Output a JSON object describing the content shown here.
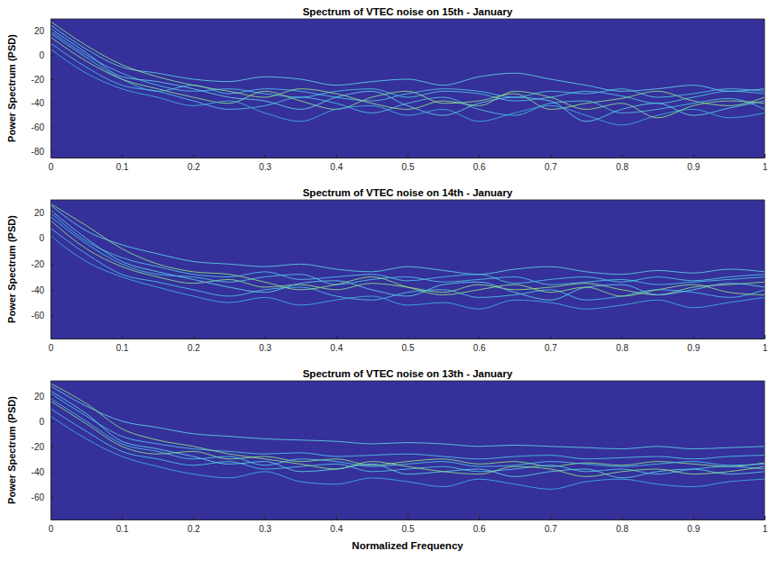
{
  "chart_data": [
    {
      "type": "line",
      "title": "Spectrum of VTEC noise on 15th - January",
      "y_label": "Power Spectrum (PSD)",
      "x": [
        0,
        0.05,
        0.1,
        0.15,
        0.2,
        0.25,
        0.3,
        0.35,
        0.4,
        0.45,
        0.5,
        0.55,
        0.6,
        0.65,
        0.7,
        0.75,
        0.8,
        0.85,
        0.9,
        0.95,
        1
      ],
      "xlim": [
        0,
        1
      ],
      "xticks": [
        0,
        0.1,
        0.2,
        0.3,
        0.4,
        0.5,
        0.6,
        0.7,
        0.8,
        0.9,
        1
      ],
      "ylim": [
        -85,
        30
      ],
      "yticks": [
        -80,
        -60,
        -40,
        -20,
        0,
        20
      ],
      "grid": false,
      "series": [
        {
          "color": "#5fd0e8",
          "values": [
            25,
            5,
            -10,
            -15,
            -20,
            -22,
            -18,
            -20,
            -25,
            -22,
            -20,
            -25,
            -18,
            -15,
            -20,
            -25,
            -30,
            -28,
            -25,
            -30,
            -28
          ]
        },
        {
          "color": "#4fc4e6",
          "values": [
            20,
            0,
            -15,
            -25,
            -30,
            -28,
            -32,
            -35,
            -30,
            -28,
            -35,
            -30,
            -32,
            -38,
            -35,
            -30,
            -34,
            -40,
            -35,
            -30,
            -32
          ]
        },
        {
          "color": "#8fe08a",
          "values": [
            15,
            -5,
            -20,
            -28,
            -35,
            -40,
            -30,
            -38,
            -45,
            -35,
            -30,
            -40,
            -38,
            -32,
            -45,
            -40,
            -36,
            -30,
            -38,
            -42,
            -35
          ]
        },
        {
          "color": "#4fc4e6",
          "values": [
            10,
            -10,
            -25,
            -30,
            -38,
            -45,
            -42,
            -35,
            -40,
            -48,
            -40,
            -35,
            -45,
            -50,
            -40,
            -38,
            -48,
            -45,
            -40,
            -36,
            -45
          ]
        },
        {
          "color": "#5fd0e8",
          "values": [
            22,
            2,
            -18,
            -22,
            -28,
            -35,
            -38,
            -45,
            -35,
            -30,
            -42,
            -50,
            -40,
            -35,
            -38,
            -55,
            -45,
            -40,
            -50,
            -44,
            -38
          ]
        },
        {
          "color": "#3fb0e0",
          "values": [
            5,
            -15,
            -28,
            -35,
            -42,
            -38,
            -48,
            -55,
            -45,
            -42,
            -50,
            -45,
            -55,
            -48,
            -42,
            -50,
            -58,
            -50,
            -45,
            -52,
            -48
          ]
        },
        {
          "color": "#4fc4e6",
          "values": [
            18,
            -2,
            -20,
            -30,
            -25,
            -32,
            -28,
            -30,
            -35,
            -38,
            -32,
            -28,
            -30,
            -35,
            -30,
            -32,
            -28,
            -35,
            -32,
            -28,
            -30
          ]
        },
        {
          "color": "#8fe08a",
          "values": [
            28,
            8,
            -8,
            -18,
            -25,
            -30,
            -35,
            -28,
            -32,
            -40,
            -45,
            -38,
            -42,
            -30,
            -35,
            -45,
            -40,
            -52,
            -42,
            -38,
            -40
          ]
        }
      ]
    },
    {
      "type": "line",
      "title": "Spectrum of VTEC noise on 14th - January",
      "y_label": "Power Spectrum (PSD)",
      "x": [
        0,
        0.05,
        0.1,
        0.15,
        0.2,
        0.25,
        0.3,
        0.35,
        0.4,
        0.45,
        0.5,
        0.55,
        0.6,
        0.65,
        0.7,
        0.75,
        0.8,
        0.85,
        0.9,
        0.95,
        1
      ],
      "xlim": [
        0,
        1
      ],
      "xticks": [
        0,
        0.1,
        0.2,
        0.3,
        0.4,
        0.5,
        0.6,
        0.7,
        0.8,
        0.9,
        1
      ],
      "ylim": [
        -78,
        30
      ],
      "yticks": [
        -60,
        -40,
        -20,
        0,
        20
      ],
      "grid": false,
      "series": [
        {
          "color": "#5fd0e8",
          "values": [
            26,
            6,
            -5,
            -12,
            -18,
            -20,
            -22,
            -20,
            -24,
            -26,
            -22,
            -25,
            -28,
            -24,
            -22,
            -26,
            -28,
            -25,
            -27,
            -24,
            -26
          ]
        },
        {
          "color": "#4fc4e6",
          "values": [
            20,
            -2,
            -15,
            -22,
            -28,
            -30,
            -26,
            -32,
            -30,
            -28,
            -33,
            -30,
            -28,
            -35,
            -32,
            -30,
            -34,
            -30,
            -33,
            -30,
            -28
          ]
        },
        {
          "color": "#8fe08a",
          "values": [
            14,
            -8,
            -22,
            -30,
            -35,
            -32,
            -38,
            -36,
            -40,
            -35,
            -38,
            -42,
            -36,
            -40,
            -38,
            -35,
            -40,
            -44,
            -38,
            -36,
            -34
          ]
        },
        {
          "color": "#4fc4e6",
          "values": [
            8,
            -12,
            -28,
            -34,
            -40,
            -45,
            -40,
            -38,
            -45,
            -48,
            -42,
            -40,
            -46,
            -44,
            -40,
            -48,
            -45,
            -40,
            -42,
            -46,
            -40
          ]
        },
        {
          "color": "#5fd0e8",
          "values": [
            22,
            0,
            -18,
            -26,
            -32,
            -38,
            -42,
            -35,
            -33,
            -40,
            -45,
            -36,
            -34,
            -42,
            -48,
            -38,
            -36,
            -44,
            -40,
            -35,
            -38
          ]
        },
        {
          "color": "#3fb0e0",
          "values": [
            2,
            -18,
            -30,
            -38,
            -45,
            -50,
            -46,
            -52,
            -48,
            -45,
            -52,
            -50,
            -55,
            -48,
            -50,
            -55,
            -52,
            -48,
            -54,
            -50,
            -46
          ]
        },
        {
          "color": "#4fc4e6",
          "values": [
            17,
            -4,
            -20,
            -28,
            -30,
            -34,
            -30,
            -28,
            -36,
            -32,
            -30,
            -34,
            -32,
            -30,
            -36,
            -34,
            -32,
            -36,
            -34,
            -32,
            -30
          ]
        },
        {
          "color": "#8fe08a",
          "values": [
            27,
            10,
            -8,
            -20,
            -26,
            -28,
            -34,
            -40,
            -36,
            -30,
            -38,
            -44,
            -40,
            -36,
            -42,
            -38,
            -45,
            -40,
            -36,
            -42,
            -44
          ]
        }
      ]
    },
    {
      "type": "line",
      "title": "Spectrum of VTEC noise on 13th - January",
      "y_label": "Power Spectrum (PSD)",
      "x_label": "Normalized Frequency",
      "x": [
        0,
        0.05,
        0.1,
        0.15,
        0.2,
        0.25,
        0.3,
        0.35,
        0.4,
        0.45,
        0.5,
        0.55,
        0.6,
        0.65,
        0.7,
        0.75,
        0.8,
        0.85,
        0.9,
        0.95,
        1
      ],
      "xlim": [
        0,
        1
      ],
      "xticks": [
        0,
        0.1,
        0.2,
        0.3,
        0.4,
        0.5,
        0.6,
        0.7,
        0.8,
        0.9,
        1
      ],
      "ylim": [
        -78,
        32
      ],
      "yticks": [
        -60,
        -40,
        -20,
        0,
        20
      ],
      "grid": false,
      "series": [
        {
          "color": "#5fd0e8",
          "values": [
            28,
            12,
            0,
            -5,
            -10,
            -12,
            -14,
            -15,
            -16,
            -18,
            -17,
            -18,
            -20,
            -19,
            -20,
            -21,
            -22,
            -20,
            -22,
            -21,
            -20
          ]
        },
        {
          "color": "#4fc4e6",
          "values": [
            22,
            4,
            -12,
            -18,
            -22,
            -24,
            -26,
            -25,
            -28,
            -27,
            -26,
            -28,
            -30,
            -28,
            -27,
            -30,
            -29,
            -28,
            -30,
            -28,
            -27
          ]
        },
        {
          "color": "#8fe08a",
          "values": [
            16,
            -2,
            -20,
            -26,
            -24,
            -30,
            -28,
            -32,
            -30,
            -35,
            -32,
            -30,
            -34,
            -32,
            -36,
            -33,
            -35,
            -32,
            -34,
            -36,
            -33
          ]
        },
        {
          "color": "#4fc4e6",
          "values": [
            10,
            -8,
            -24,
            -30,
            -35,
            -32,
            -38,
            -36,
            -34,
            -40,
            -38,
            -36,
            -40,
            -38,
            -35,
            -40,
            -38,
            -42,
            -38,
            -36,
            -38
          ]
        },
        {
          "color": "#5fd0e8",
          "values": [
            24,
            6,
            -16,
            -22,
            -28,
            -34,
            -32,
            -40,
            -38,
            -34,
            -42,
            -40,
            -38,
            -44,
            -40,
            -38,
            -45,
            -40,
            -38,
            -42,
            -40
          ]
        },
        {
          "color": "#3fb0e0",
          "values": [
            4,
            -14,
            -28,
            -36,
            -42,
            -45,
            -40,
            -48,
            -50,
            -45,
            -48,
            -52,
            -46,
            -50,
            -54,
            -48,
            -46,
            -50,
            -52,
            -48,
            -46
          ]
        },
        {
          "color": "#4fc4e6",
          "values": [
            18,
            0,
            -18,
            -24,
            -30,
            -28,
            -35,
            -30,
            -32,
            -36,
            -34,
            -32,
            -36,
            -35,
            -32,
            -34,
            -36,
            -34,
            -32,
            -35,
            -34
          ]
        },
        {
          "color": "#8fe08a",
          "values": [
            30,
            14,
            -6,
            -15,
            -20,
            -26,
            -30,
            -34,
            -38,
            -32,
            -36,
            -40,
            -42,
            -36,
            -38,
            -44,
            -40,
            -38,
            -42,
            -40,
            -36
          ]
        }
      ]
    }
  ]
}
